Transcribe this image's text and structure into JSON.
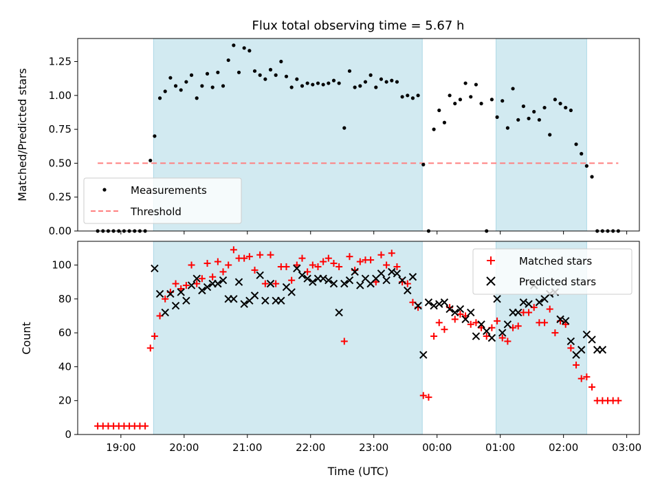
{
  "title": "Flux total observing time = 5.67 h",
  "xlabel": "Time (UTC)",
  "colors": {
    "span": "#add8e6",
    "measurement": "#000000",
    "threshold": "#ff7f7f",
    "matched": "#ff0000",
    "predicted": "#000000"
  },
  "chart_data": [
    {
      "type": "scatter",
      "title": "Flux total observing time = 5.67 h",
      "ylabel": "Matched/Predicted stars",
      "xlabel": "",
      "ylim": [
        0,
        1.42
      ],
      "xlim": [
        "18:19",
        "03:12"
      ],
      "yticks": [
        "0.00",
        "0.25",
        "0.50",
        "0.75",
        "1.00",
        "1.25"
      ],
      "xticks": [],
      "shaded_spans": [
        [
          "19:31",
          "23:46"
        ],
        [
          "00:56",
          "02:22"
        ]
      ],
      "legend_position": "lower-left",
      "series": [
        {
          "name": "Measurements",
          "marker": "dot",
          "x": [
            "18:38",
            "18:43",
            "18:48",
            "18:53",
            "18:58",
            "19:03",
            "19:08",
            "19:13",
            "19:18",
            "19:23",
            "19:28",
            "19:32",
            "19:37",
            "19:42",
            "19:47",
            "19:52",
            "19:57",
            "20:02",
            "20:07",
            "20:12",
            "20:17",
            "20:22",
            "20:27",
            "20:32",
            "20:37",
            "20:42",
            "20:47",
            "20:52",
            "20:57",
            "21:02",
            "21:07",
            "21:12",
            "21:17",
            "21:22",
            "21:27",
            "21:32",
            "21:37",
            "21:42",
            "21:47",
            "21:52",
            "21:57",
            "22:02",
            "22:07",
            "22:12",
            "22:17",
            "22:22",
            "22:27",
            "22:32",
            "22:37",
            "22:42",
            "22:47",
            "22:52",
            "22:57",
            "23:02",
            "23:07",
            "23:12",
            "23:17",
            "23:22",
            "23:27",
            "23:32",
            "23:37",
            "23:42",
            "23:47",
            "23:52",
            "23:57",
            "00:02",
            "00:07",
            "00:12",
            "00:17",
            "00:22",
            "00:27",
            "00:32",
            "00:37",
            "00:42",
            "00:47",
            "00:52",
            "00:57",
            "01:02",
            "01:07",
            "01:12",
            "01:17",
            "01:22",
            "01:27",
            "01:32",
            "01:37",
            "01:42",
            "01:47",
            "01:52",
            "01:57",
            "02:02",
            "02:07",
            "02:12",
            "02:17",
            "02:22",
            "02:27",
            "02:32",
            "02:37",
            "02:42",
            "02:47",
            "02:52"
          ],
          "values": [
            0,
            0,
            0,
            0,
            0,
            0,
            0,
            0,
            0,
            0,
            0.52,
            0.7,
            0.98,
            1.03,
            1.13,
            1.07,
            1.04,
            1.1,
            1.15,
            0.98,
            1.07,
            1.16,
            1.06,
            1.17,
            1.07,
            1.26,
            1.37,
            1.17,
            1.35,
            1.33,
            1.18,
            1.15,
            1.12,
            1.19,
            1.15,
            1.25,
            1.14,
            1.06,
            1.12,
            1.07,
            1.09,
            1.08,
            1.09,
            1.08,
            1.09,
            1.11,
            1.09,
            0.76,
            1.18,
            1.06,
            1.07,
            1.1,
            1.15,
            1.06,
            1.12,
            1.1,
            1.11,
            1.1,
            0.99,
            1.0,
            0.98,
            1.0,
            0.49,
            0,
            0.75,
            0.89,
            0.8,
            1.0,
            0.94,
            0.97,
            1.09,
            0.99,
            1.08,
            0.94,
            0,
            0.97,
            0.84,
            0.96,
            0.76,
            1.05,
            0.82,
            0.92,
            0.83,
            0.88,
            0.82,
            0.91,
            0.71,
            0.97,
            0.94,
            0.91,
            0.89,
            0.64,
            0.57,
            0.48,
            0.4,
            0,
            0,
            0,
            0,
            0
          ]
        },
        {
          "name": "Threshold",
          "style": "dashed",
          "x": [
            "18:38",
            "02:52"
          ],
          "values": [
            0.5,
            0.5
          ]
        }
      ]
    },
    {
      "type": "scatter",
      "ylabel": "Count",
      "xlabel": "Time (UTC)",
      "ylim": [
        0,
        114
      ],
      "xlim": [
        "18:19",
        "03:12"
      ],
      "yticks": [
        "0",
        "20",
        "40",
        "60",
        "80",
        "100"
      ],
      "xticks": [
        "19:00",
        "20:00",
        "21:00",
        "22:00",
        "23:00",
        "00:00",
        "01:00",
        "02:00",
        "03:00"
      ],
      "shaded_spans": [
        [
          "19:31",
          "23:46"
        ],
        [
          "00:56",
          "02:22"
        ]
      ],
      "legend_position": "top-right",
      "series": [
        {
          "name": "Matched stars",
          "marker": "plus",
          "x": [
            "18:38",
            "18:43",
            "18:48",
            "18:53",
            "18:58",
            "19:03",
            "19:08",
            "19:13",
            "19:18",
            "19:23",
            "19:28",
            "19:32",
            "19:37",
            "19:42",
            "19:47",
            "19:52",
            "19:57",
            "20:02",
            "20:07",
            "20:12",
            "20:17",
            "20:22",
            "20:27",
            "20:32",
            "20:37",
            "20:42",
            "20:47",
            "20:52",
            "20:57",
            "21:02",
            "21:07",
            "21:12",
            "21:17",
            "21:22",
            "21:27",
            "21:32",
            "21:37",
            "21:42",
            "21:47",
            "21:52",
            "21:57",
            "22:02",
            "22:07",
            "22:12",
            "22:17",
            "22:22",
            "22:27",
            "22:32",
            "22:37",
            "22:42",
            "22:47",
            "22:52",
            "22:57",
            "23:02",
            "23:07",
            "23:12",
            "23:17",
            "23:22",
            "23:27",
            "23:32",
            "23:37",
            "23:42",
            "23:47",
            "23:52",
            "23:57",
            "00:02",
            "00:07",
            "00:12",
            "00:17",
            "00:22",
            "00:27",
            "00:32",
            "00:37",
            "00:42",
            "00:47",
            "00:52",
            "00:57",
            "01:02",
            "01:07",
            "01:12",
            "01:17",
            "01:22",
            "01:27",
            "01:32",
            "01:37",
            "01:42",
            "01:47",
            "01:52",
            "01:57",
            "02:02",
            "02:07",
            "02:12",
            "02:17",
            "02:22",
            "02:27",
            "02:32",
            "02:37",
            "02:42",
            "02:47",
            "02:52"
          ],
          "values": [
            5,
            5,
            5,
            5,
            5,
            5,
            5,
            5,
            5,
            5,
            51,
            58,
            70,
            80,
            84,
            89,
            86,
            88,
            100,
            89,
            92,
            101,
            93,
            102,
            96,
            100,
            109,
            104,
            104,
            105,
            97,
            106,
            89,
            106,
            89,
            99,
            99,
            91,
            100,
            104,
            96,
            100,
            99,
            102,
            104,
            101,
            99,
            55,
            105,
            97,
            102,
            103,
            103,
            90,
            106,
            100,
            107,
            99,
            90,
            89,
            78,
            75,
            23,
            22,
            58,
            66,
            62,
            75,
            68,
            71,
            70,
            65,
            66,
            63,
            58,
            63,
            67,
            57,
            55,
            63,
            64,
            72,
            72,
            75,
            66,
            66,
            74,
            60,
            67,
            65,
            51,
            41,
            33,
            34,
            28,
            20,
            20,
            20,
            20,
            20
          ]
        },
        {
          "name": "Predicted stars",
          "marker": "x",
          "x": [
            "19:32",
            "19:37",
            "19:42",
            "19:47",
            "19:52",
            "19:57",
            "20:02",
            "20:07",
            "20:12",
            "20:17",
            "20:22",
            "20:27",
            "20:32",
            "20:37",
            "20:42",
            "20:47",
            "20:52",
            "20:57",
            "21:02",
            "21:07",
            "21:12",
            "21:17",
            "21:22",
            "21:27",
            "21:32",
            "21:37",
            "21:42",
            "21:47",
            "21:52",
            "21:57",
            "22:02",
            "22:07",
            "22:12",
            "22:17",
            "22:22",
            "22:27",
            "22:32",
            "22:37",
            "22:42",
            "22:47",
            "22:52",
            "22:57",
            "23:02",
            "23:07",
            "23:12",
            "23:17",
            "23:22",
            "23:27",
            "23:32",
            "23:37",
            "23:42",
            "23:47",
            "23:52",
            "23:57",
            "00:02",
            "00:07",
            "00:12",
            "00:17",
            "00:22",
            "00:27",
            "00:32",
            "00:37",
            "00:42",
            "00:47",
            "00:52",
            "00:57",
            "01:02",
            "01:07",
            "01:12",
            "01:17",
            "01:22",
            "01:27",
            "01:32",
            "01:37",
            "01:42",
            "01:47",
            "01:52",
            "01:57",
            "02:02",
            "02:07",
            "02:12",
            "02:17",
            "02:22",
            "02:27",
            "02:32",
            "02:37"
          ],
          "values": [
            98,
            83,
            72,
            83,
            76,
            84,
            79,
            88,
            92,
            85,
            87,
            89,
            89,
            91,
            80,
            80,
            90,
            77,
            79,
            82,
            94,
            79,
            89,
            79,
            79,
            87,
            84,
            98,
            94,
            92,
            90,
            92,
            92,
            91,
            89,
            72,
            89,
            91,
            96,
            88,
            92,
            89,
            92,
            95,
            91,
            96,
            95,
            91,
            85,
            93,
            76,
            47,
            78,
            76,
            77,
            78,
            74,
            72,
            74,
            68,
            72,
            58,
            65,
            61,
            57,
            80,
            60,
            65,
            72,
            72,
            78,
            77,
            88,
            78,
            80,
            83,
            84,
            68,
            67,
            55,
            47,
            50,
            59,
            56,
            50,
            50
          ]
        }
      ]
    }
  ],
  "legend_top": [
    {
      "label": "Measurements"
    },
    {
      "label": "Threshold"
    }
  ],
  "legend_bottom": [
    {
      "label": "Matched stars"
    },
    {
      "label": "Predicted stars"
    }
  ]
}
